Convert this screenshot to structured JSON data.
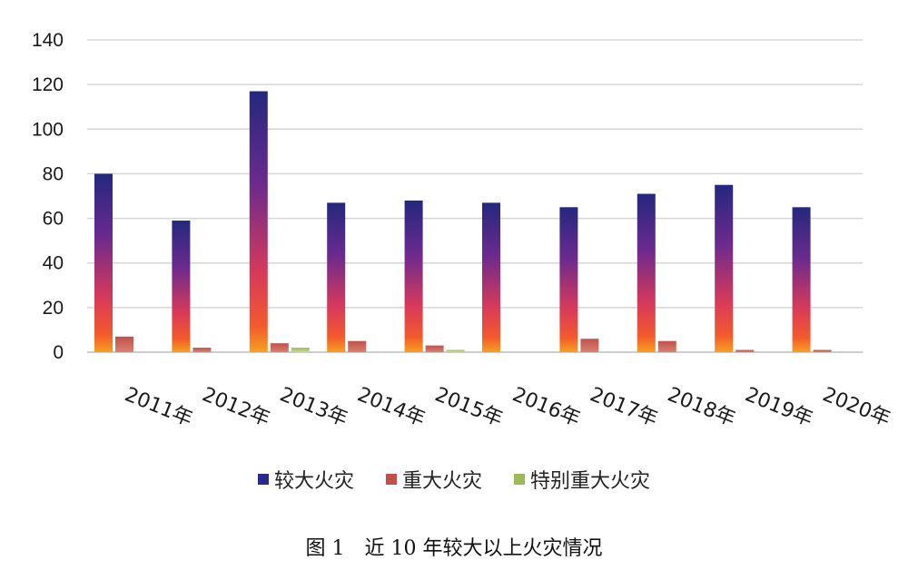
{
  "caption": "图 1　近 10 年较大以上火灾情况",
  "chart_data": {
    "type": "bar",
    "categories": [
      "2011年",
      "2012年",
      "2013年",
      "2014年",
      "2015年",
      "2016年",
      "2017年",
      "2018年",
      "2019年",
      "2020年"
    ],
    "series": [
      {
        "name": "较大火灾",
        "values": [
          80,
          59,
          117,
          67,
          68,
          67,
          65,
          71,
          75,
          65
        ],
        "color": "#2b2a8c"
      },
      {
        "name": "重大火灾",
        "values": [
          7,
          2,
          4,
          5,
          3,
          0,
          6,
          5,
          1,
          1
        ],
        "color": "#c0504d"
      },
      {
        "name": "特别重大火灾",
        "values": [
          0,
          0,
          2,
          0,
          1,
          0,
          0,
          0,
          0,
          0
        ],
        "color": "#9bbb59"
      }
    ],
    "yticks": [
      "0",
      "20",
      "40",
      "60",
      "80",
      "100",
      "120",
      "140"
    ],
    "ylim": [
      0,
      140
    ],
    "grid": true,
    "legend_position": "bottom"
  }
}
